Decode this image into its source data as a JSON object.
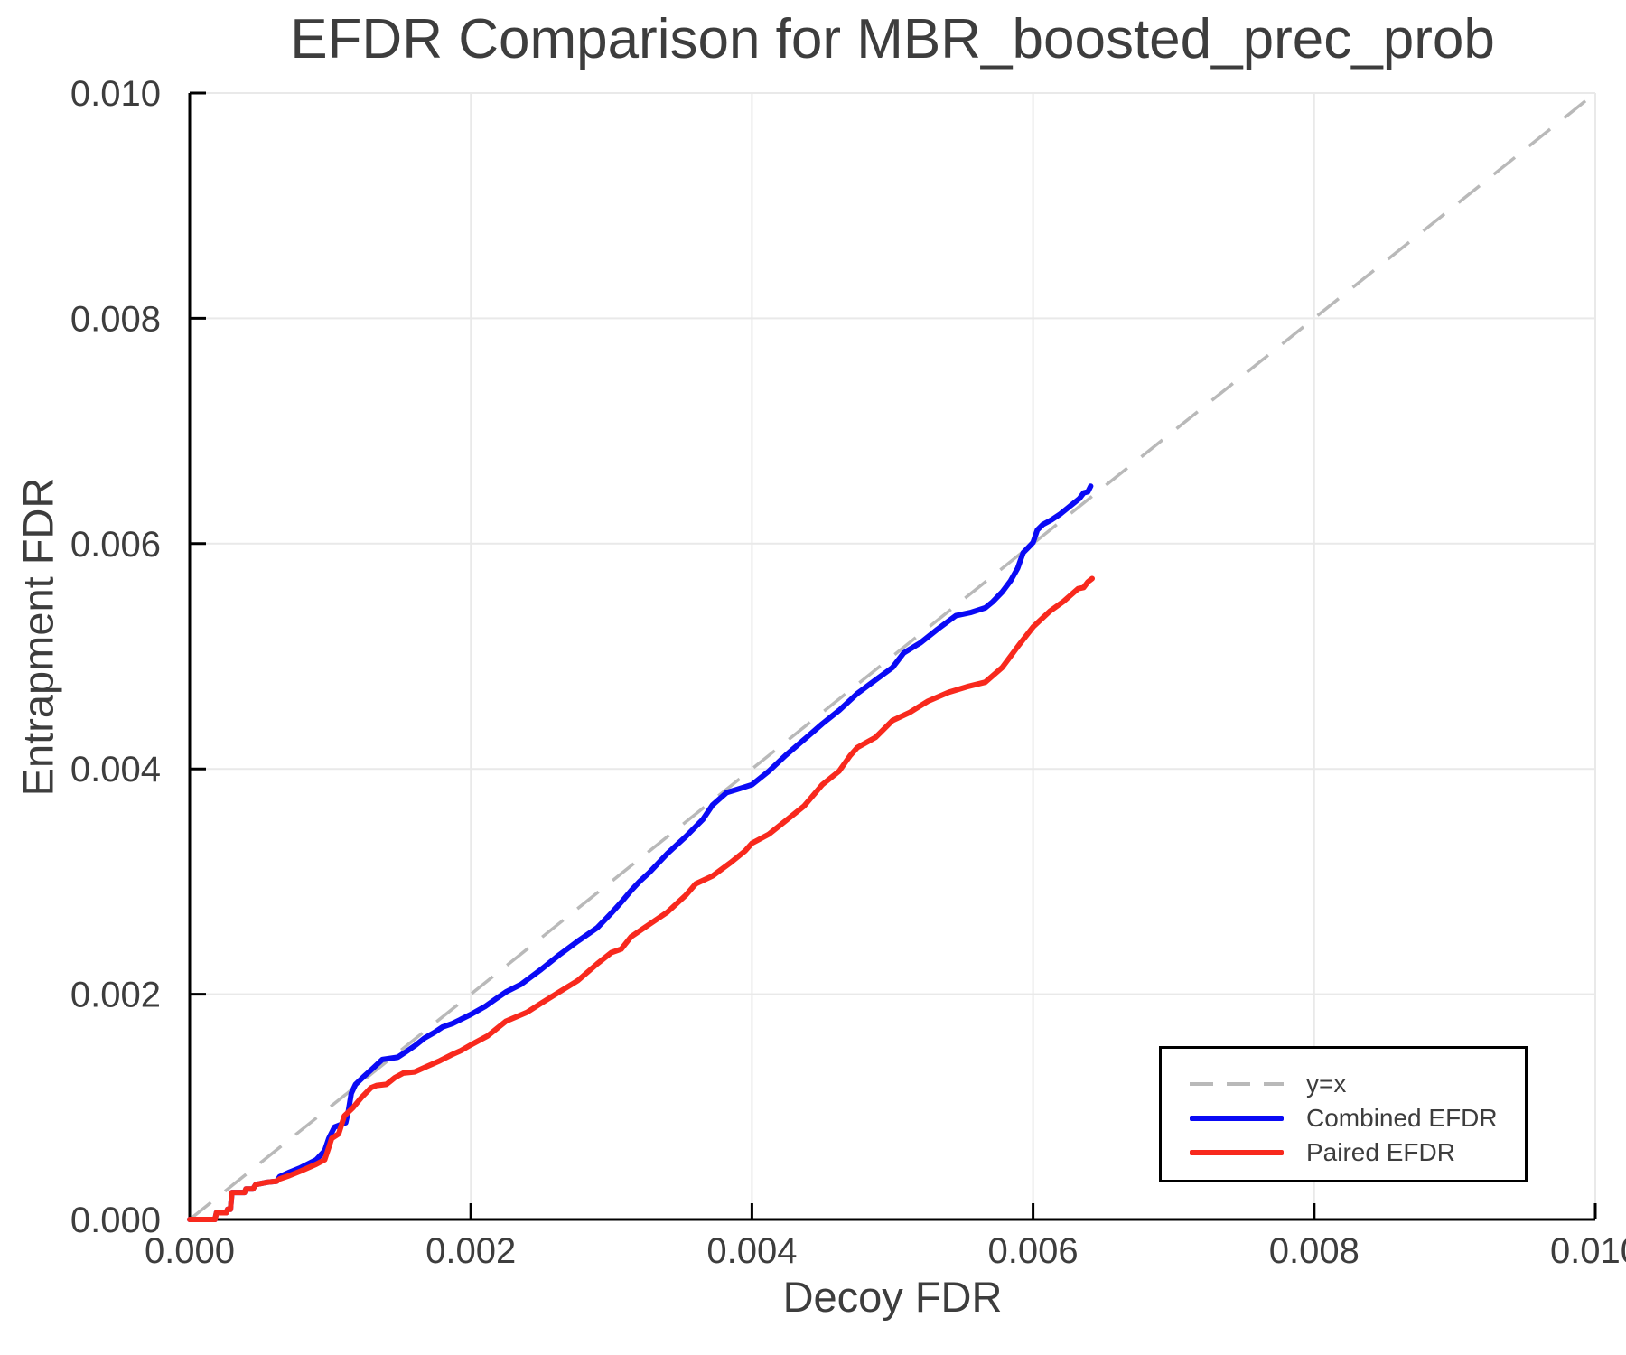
{
  "page": {
    "background": "#ffffff"
  },
  "chart_data": {
    "type": "line",
    "title": "EFDR Comparison for MBR_boosted_prec_prob",
    "xlabel": "Decoy FDR",
    "ylabel": "Entrapment FDR",
    "xlim": [
      0.0,
      0.01
    ],
    "ylim": [
      0.0,
      0.01
    ],
    "grid": true,
    "x_ticks": {
      "values": [
        0.0,
        0.002,
        0.004,
        0.006,
        0.008,
        0.01
      ],
      "labels": [
        "0.000",
        "0.002",
        "0.004",
        "0.006",
        "0.008",
        "0.010"
      ]
    },
    "y_ticks": {
      "values": [
        0.0,
        0.002,
        0.004,
        0.006,
        0.008,
        0.01
      ],
      "labels": [
        "0.000",
        "0.002",
        "0.004",
        "0.006",
        "0.008",
        "0.010"
      ]
    },
    "legend": {
      "position": "lower right"
    },
    "styles": {
      "grid_color": "#e9e9e9",
      "spine_color": "#000000",
      "tick_color": "#000000",
      "title_color": "#3d3d3d",
      "axis_label_color": "#3d3d3d",
      "tick_label_color": "#3d3d3d",
      "legend_border_color": "#000000",
      "legend_background": "#ffffff",
      "legend_text_color": "#3d3d3d"
    },
    "series": [
      {
        "name": "y=x",
        "color": "#b9b9b9",
        "dashed": true,
        "width": 3.5,
        "points": [
          [
            0.0,
            0.0
          ],
          [
            0.01,
            0.01
          ]
        ]
      },
      {
        "name": "Combined EFDR",
        "color": "#0a0af5",
        "dashed": false,
        "width": 6,
        "points": [
          [
            0.0,
            0.0
          ],
          [
            0.00018,
            0.0
          ],
          [
            0.00019,
            6e-05
          ],
          [
            0.00026,
            6e-05
          ],
          [
            0.00027,
            9e-05
          ],
          [
            0.00029,
            9e-05
          ],
          [
            0.0003,
            0.00024
          ],
          [
            0.00039,
            0.00024
          ],
          [
            0.0004,
            0.00027
          ],
          [
            0.00045,
            0.00027
          ],
          [
            0.00047,
            0.00031
          ],
          [
            0.00055,
            0.00033
          ],
          [
            0.00062,
            0.00034
          ],
          [
            0.00064,
            0.00038
          ],
          [
            0.00071,
            0.00042
          ],
          [
            0.00079,
            0.00046
          ],
          [
            0.0009,
            0.00053
          ],
          [
            0.00096,
            0.00061
          ],
          [
            0.00099,
            0.00072
          ],
          [
            0.00103,
            0.00082
          ],
          [
            0.00111,
            0.00086
          ],
          [
            0.00113,
            0.00097
          ],
          [
            0.00115,
            0.00112
          ],
          [
            0.00118,
            0.0012
          ],
          [
            0.00124,
            0.00127
          ],
          [
            0.00131,
            0.00135
          ],
          [
            0.00137,
            0.00142
          ],
          [
            0.00148,
            0.00144
          ],
          [
            0.00154,
            0.00149
          ],
          [
            0.00161,
            0.00155
          ],
          [
            0.00167,
            0.00161
          ],
          [
            0.00174,
            0.00166
          ],
          [
            0.0018,
            0.00171
          ],
          [
            0.00187,
            0.00174
          ],
          [
            0.002,
            0.00182
          ],
          [
            0.0021,
            0.00189
          ],
          [
            0.00218,
            0.00196
          ],
          [
            0.00225,
            0.00202
          ],
          [
            0.00236,
            0.00209
          ],
          [
            0.0025,
            0.00222
          ],
          [
            0.00263,
            0.00235
          ],
          [
            0.00276,
            0.00247
          ],
          [
            0.0029,
            0.00259
          ],
          [
            0.003,
            0.00272
          ],
          [
            0.00308,
            0.00283
          ],
          [
            0.00314,
            0.00292
          ],
          [
            0.0032,
            0.003
          ],
          [
            0.00327,
            0.00308
          ],
          [
            0.0034,
            0.00325
          ],
          [
            0.00353,
            0.0034
          ],
          [
            0.00365,
            0.00355
          ],
          [
            0.00372,
            0.00368
          ],
          [
            0.00382,
            0.00379
          ],
          [
            0.0039,
            0.00382
          ],
          [
            0.004,
            0.00386
          ],
          [
            0.00412,
            0.00398
          ],
          [
            0.00424,
            0.00412
          ],
          [
            0.00437,
            0.00426
          ],
          [
            0.0045,
            0.0044
          ],
          [
            0.00462,
            0.00452
          ],
          [
            0.00475,
            0.00467
          ],
          [
            0.00488,
            0.00479
          ],
          [
            0.005,
            0.0049
          ],
          [
            0.00508,
            0.00503
          ],
          [
            0.0052,
            0.00512
          ],
          [
            0.00532,
            0.00524
          ],
          [
            0.00545,
            0.00536
          ],
          [
            0.00556,
            0.00539
          ],
          [
            0.00566,
            0.00543
          ],
          [
            0.00571,
            0.00548
          ],
          [
            0.00578,
            0.00557
          ],
          [
            0.00584,
            0.00567
          ],
          [
            0.00589,
            0.00578
          ],
          [
            0.00593,
            0.00592
          ],
          [
            0.00597,
            0.00597
          ],
          [
            0.006,
            0.00601
          ],
          [
            0.00603,
            0.00612
          ],
          [
            0.00607,
            0.00617
          ],
          [
            0.00613,
            0.00621
          ],
          [
            0.00619,
            0.00626
          ],
          [
            0.00627,
            0.00634
          ],
          [
            0.00633,
            0.0064
          ],
          [
            0.00636,
            0.00645
          ],
          [
            0.00639,
            0.00646
          ],
          [
            0.00641,
            0.00651
          ]
        ]
      },
      {
        "name": "Paired EFDR",
        "color": "#f8291d",
        "dashed": false,
        "width": 6,
        "points": [
          [
            0.0,
            0.0
          ],
          [
            0.00018,
            0.0
          ],
          [
            0.00019,
            6e-05
          ],
          [
            0.00026,
            6e-05
          ],
          [
            0.00027,
            9e-05
          ],
          [
            0.00029,
            9e-05
          ],
          [
            0.0003,
            0.00024
          ],
          [
            0.00039,
            0.00024
          ],
          [
            0.0004,
            0.00027
          ],
          [
            0.00045,
            0.00027
          ],
          [
            0.00047,
            0.00031
          ],
          [
            0.00055,
            0.00033
          ],
          [
            0.00062,
            0.00034
          ],
          [
            0.00064,
            0.00036
          ],
          [
            0.00071,
            0.00039
          ],
          [
            0.00079,
            0.00043
          ],
          [
            0.0009,
            0.00049
          ],
          [
            0.00096,
            0.00053
          ],
          [
            0.00099,
            0.00064
          ],
          [
            0.00101,
            0.00072
          ],
          [
            0.00106,
            0.00076
          ],
          [
            0.0011,
            0.00092
          ],
          [
            0.00116,
            0.00099
          ],
          [
            0.00122,
            0.00108
          ],
          [
            0.00129,
            0.00117
          ],
          [
            0.00133,
            0.00119
          ],
          [
            0.0014,
            0.0012
          ],
          [
            0.00146,
            0.00126
          ],
          [
            0.00152,
            0.0013
          ],
          [
            0.0016,
            0.00131
          ],
          [
            0.00169,
            0.00136
          ],
          [
            0.00178,
            0.00141
          ],
          [
            0.00186,
            0.00146
          ],
          [
            0.00193,
            0.0015
          ],
          [
            0.002,
            0.00155
          ],
          [
            0.00212,
            0.00163
          ],
          [
            0.00225,
            0.00176
          ],
          [
            0.0024,
            0.00184
          ],
          [
            0.0025,
            0.00192
          ],
          [
            0.00263,
            0.00202
          ],
          [
            0.00276,
            0.00212
          ],
          [
            0.0029,
            0.00227
          ],
          [
            0.003,
            0.00237
          ],
          [
            0.00307,
            0.0024
          ],
          [
            0.00314,
            0.00251
          ],
          [
            0.00327,
            0.00262
          ],
          [
            0.0034,
            0.00273
          ],
          [
            0.00353,
            0.00288
          ],
          [
            0.0036,
            0.00298
          ],
          [
            0.00372,
            0.00305
          ],
          [
            0.00385,
            0.00317
          ],
          [
            0.00395,
            0.00327
          ],
          [
            0.004,
            0.00334
          ],
          [
            0.00412,
            0.00342
          ],
          [
            0.00424,
            0.00354
          ],
          [
            0.00437,
            0.00367
          ],
          [
            0.0045,
            0.00386
          ],
          [
            0.00462,
            0.00398
          ],
          [
            0.0047,
            0.00412
          ],
          [
            0.00475,
            0.00419
          ],
          [
            0.00488,
            0.00428
          ],
          [
            0.005,
            0.00443
          ],
          [
            0.00512,
            0.0045
          ],
          [
            0.00525,
            0.0046
          ],
          [
            0.0054,
            0.00468
          ],
          [
            0.00553,
            0.00473
          ],
          [
            0.00566,
            0.00477
          ],
          [
            0.00578,
            0.0049
          ],
          [
            0.0059,
            0.0051
          ],
          [
            0.006,
            0.00526
          ],
          [
            0.00612,
            0.0054
          ],
          [
            0.00622,
            0.00549
          ],
          [
            0.00632,
            0.0056
          ],
          [
            0.00636,
            0.00561
          ],
          [
            0.00639,
            0.00566
          ],
          [
            0.00642,
            0.00569
          ]
        ]
      }
    ]
  }
}
